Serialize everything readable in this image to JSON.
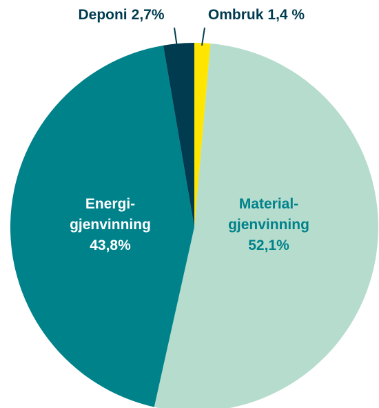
{
  "chart_data": {
    "type": "pie",
    "categories": [
      [
        "Ombruk"
      ],
      [
        "Material-",
        "gjenvinning"
      ],
      [
        "Energi-",
        "gjenvinning"
      ],
      [
        "Deponi"
      ]
    ],
    "values": [
      1.4,
      52.1,
      43.8,
      2.7
    ],
    "value_labels": [
      "1,4 %",
      "52,1%",
      "43,8%",
      "2,7%"
    ],
    "colors": [
      "#ffe600",
      "#b6dccd",
      "#00828b",
      "#003b4f"
    ]
  }
}
